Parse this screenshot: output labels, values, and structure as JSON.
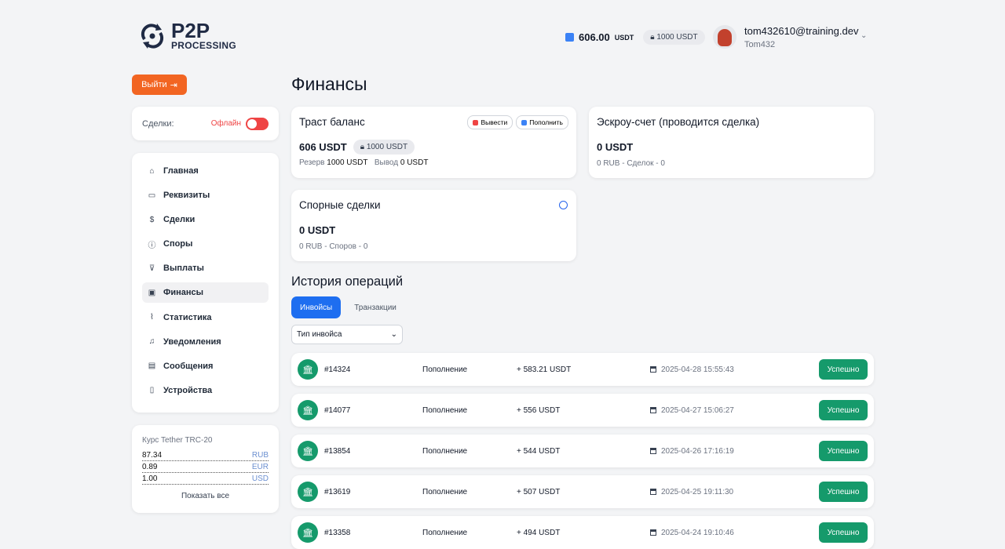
{
  "brand": {
    "line1": "P2P",
    "line2": "PROCESSING"
  },
  "header": {
    "balance": "606.00",
    "balance_unit": "USDT",
    "locked": "1000 USDT",
    "email": "tom432610@training.dev",
    "username": "Tom432"
  },
  "logout_label": "Выйти",
  "deals_toggle": {
    "label": "Сделки:",
    "status": "Офлайн",
    "on": false
  },
  "nav": [
    {
      "label": "Главная",
      "icon": "home"
    },
    {
      "label": "Реквизиты",
      "icon": "card"
    },
    {
      "label": "Сделки",
      "icon": "dollar"
    },
    {
      "label": "Споры",
      "icon": "alert"
    },
    {
      "label": "Выплаты",
      "icon": "payout"
    },
    {
      "label": "Финансы",
      "icon": "wallet",
      "active": true
    },
    {
      "label": "Статистика",
      "icon": "chart"
    },
    {
      "label": "Уведомления",
      "icon": "bell"
    },
    {
      "label": "Сообщения",
      "icon": "message"
    },
    {
      "label": "Устройства",
      "icon": "device"
    }
  ],
  "rates": {
    "title": "Курс Tether TRC-20",
    "items": [
      {
        "value": "87.34",
        "currency": "RUB"
      },
      {
        "value": "0.89",
        "currency": "EUR"
      },
      {
        "value": "1.00",
        "currency": "USD"
      }
    ],
    "show_all": "Показать все"
  },
  "page_title": "Финансы",
  "trust": {
    "title": "Траст баланс",
    "withdraw": "Вывести",
    "deposit": "Пополнить",
    "value": "606 USDT",
    "locked": "1000 USDT",
    "reserve_label": "Резерв",
    "reserve": "1000 USDT",
    "out_label": "Вывод",
    "out": "0 USDT"
  },
  "escrow": {
    "title": "Эскроу-счет (проводится сделка)",
    "value": "0 USDT",
    "sub": "0 RUB - Сделок - 0"
  },
  "disputes": {
    "title": "Спорные сделки",
    "value": "0 USDT",
    "sub": "0 RUB - Споров - 0"
  },
  "history": {
    "title": "История операций",
    "tabs": [
      "Инвойсы",
      "Транзакции"
    ],
    "filter": "Тип инвойса",
    "rows": [
      {
        "id": "#14324",
        "type": "Пополнение",
        "amount": "+ 583.21 USDT",
        "date": "2025-04-28 15:55:43",
        "status": "Успешно"
      },
      {
        "id": "#14077",
        "type": "Пополнение",
        "amount": "+ 556 USDT",
        "date": "2025-04-27 15:06:27",
        "status": "Успешно"
      },
      {
        "id": "#13854",
        "type": "Пополнение",
        "amount": "+ 544 USDT",
        "date": "2025-04-26 17:16:19",
        "status": "Успешно"
      },
      {
        "id": "#13619",
        "type": "Пополнение",
        "amount": "+ 507 USDT",
        "date": "2025-04-25 19:11:30",
        "status": "Успешно"
      },
      {
        "id": "#13358",
        "type": "Пополнение",
        "amount": "+ 494 USDT",
        "date": "2025-04-24 19:10:46",
        "status": "Успешно"
      }
    ]
  },
  "colors": {
    "accent": "#1e6ef0",
    "logout": "#f26522",
    "success": "#159a6b",
    "offline": "#ef4444"
  }
}
